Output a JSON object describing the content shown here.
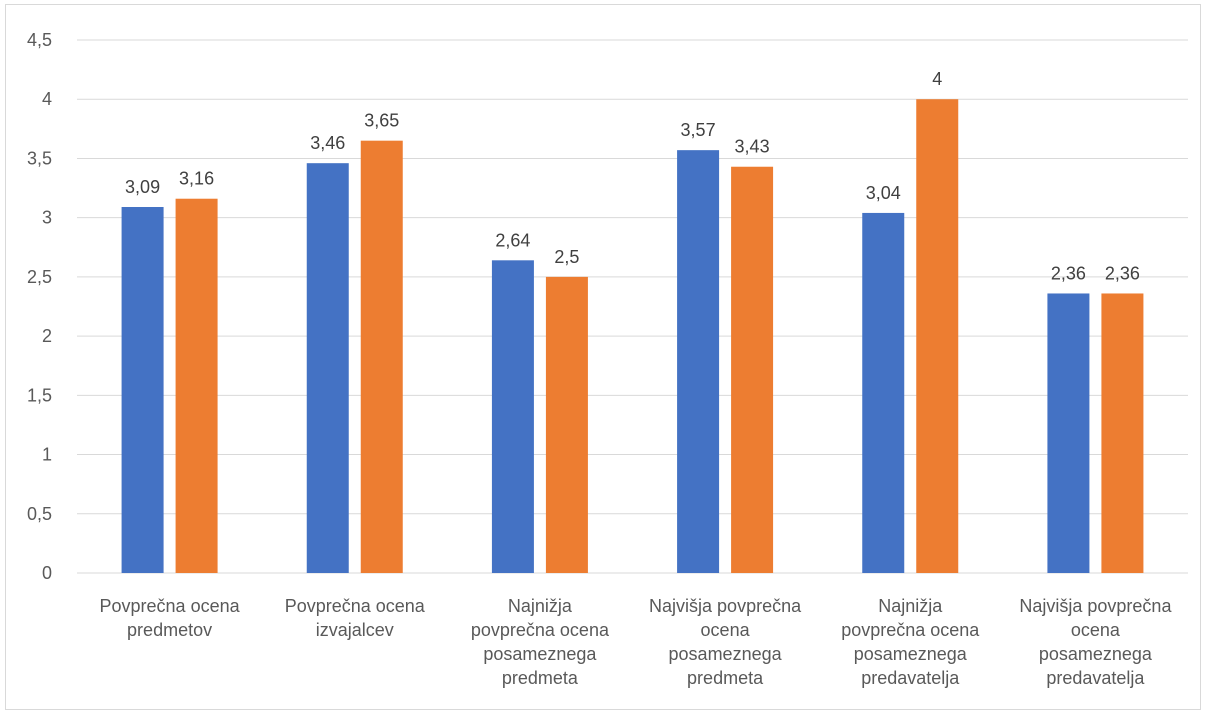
{
  "chart_data": {
    "type": "bar",
    "title": "",
    "xlabel": "",
    "ylabel": "",
    "ylim": [
      0,
      4.5
    ],
    "yticks": [
      0,
      0.5,
      1,
      1.5,
      2,
      2.5,
      3,
      3.5,
      4,
      4.5
    ],
    "ytick_labels": [
      "0",
      "0,5",
      "1",
      "1,5",
      "2",
      "2,5",
      "3",
      "3,5",
      "4",
      "4,5"
    ],
    "grid": "horizontal",
    "legend": "none",
    "categories": [
      [
        "Povprečna ocena",
        "predmetov"
      ],
      [
        "Povprečna ocena",
        "izvajalcev"
      ],
      [
        "Najnižja",
        "povprečna ocena",
        "posameznega",
        "predmeta"
      ],
      [
        "Najvišja povprečna",
        "ocena",
        "posameznega",
        "predmeta"
      ],
      [
        "Najnižja",
        "povprečna ocena",
        "posameznega",
        "predavatelja"
      ],
      [
        "Najvišja povprečna",
        "ocena",
        "posameznega",
        "predavatelja"
      ]
    ],
    "series": [
      {
        "color": "#4472c4",
        "values": [
          3.09,
          3.46,
          2.64,
          3.57,
          3.04,
          2.36
        ],
        "labels": [
          "3,09",
          "3,46",
          "2,64",
          "3,57",
          "3,04",
          "2,36"
        ]
      },
      {
        "color": "#ed7d31",
        "values": [
          3.16,
          3.65,
          2.5,
          3.43,
          4,
          2.36
        ],
        "labels": [
          "3,16",
          "3,65",
          "2,5",
          "3,43",
          "4",
          "2,36"
        ]
      }
    ],
    "gridline_color": "#d9d9d9"
  }
}
